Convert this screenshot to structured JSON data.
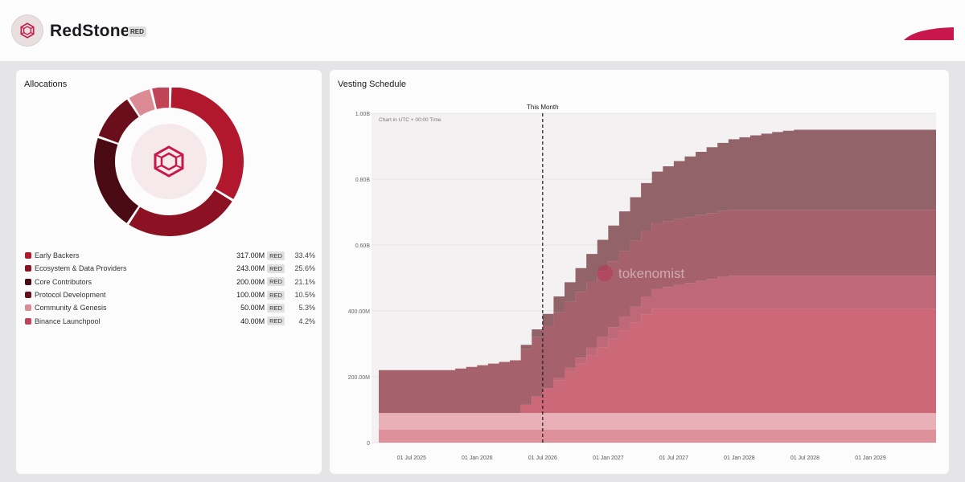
{
  "header": {
    "token_name": "RedStone",
    "token_symbol": "RED",
    "logo_icon": "redstone-hexagon-icon",
    "brand_color": "#c8174a"
  },
  "allocations": {
    "title": "Allocations",
    "items": [
      {
        "label": "Early Backers",
        "amount": "317.00M",
        "symbol": "RED",
        "pct": "33.4%",
        "value": 33.4,
        "color": "#b1182d"
      },
      {
        "label": "Ecosystem & Data Providers",
        "amount": "243.00M",
        "symbol": "RED",
        "pct": "25.6%",
        "value": 25.6,
        "color": "#8c1223"
      },
      {
        "label": "Core Contributors",
        "amount": "200.00M",
        "symbol": "RED",
        "pct": "21.1%",
        "value": 21.1,
        "color": "#4a0a14"
      },
      {
        "label": "Protocol Development",
        "amount": "100.00M",
        "symbol": "RED",
        "pct": "10.5%",
        "value": 10.5,
        "color": "#6b0e1c"
      },
      {
        "label": "Community & Genesis",
        "amount": "50.00M",
        "symbol": "RED",
        "pct": "5.3%",
        "value": 5.3,
        "color": "#dc8b95"
      },
      {
        "label": "Binance Launchpool",
        "amount": "40.00M",
        "symbol": "RED",
        "pct": "4.2%",
        "value": 4.2,
        "color": "#c14456"
      }
    ]
  },
  "vesting": {
    "title": "Vesting Schedule",
    "marker_label": "This Month",
    "timezone_note": "Chart in UTC + 00:00 Time",
    "watermark": "tokenomist",
    "chart_data": {
      "type": "area",
      "stacked": true,
      "ylim": [
        0,
        1000000000
      ],
      "y_ticks": [
        "0",
        "200.00M",
        "400.00M",
        "0.60B",
        "0.80B",
        "1.00B"
      ],
      "x_ticks": [
        "01 Jul 2025",
        "01 Jan 2026",
        "01 Jul 2026",
        "01 Jan 2027",
        "01 Jul 2027",
        "01 Jan 2028",
        "01 Jul 2028",
        "01 Jan 2029"
      ],
      "x_range_months": [
        0,
        51
      ],
      "marker_month": 15,
      "series": [
        {
          "color": "#dc8b95",
          "opacity": 0.95,
          "steps": [
            [
              0,
              40
            ],
            [
              51,
              40
            ]
          ]
        },
        {
          "color": "#e6a5ae",
          "opacity": 0.85,
          "steps": [
            [
              0,
              50
            ],
            [
              51,
              50
            ]
          ]
        },
        {
          "color": "#c85a6a",
          "opacity": 0.9,
          "steps": [
            [
              0,
              0
            ],
            [
              12,
              0
            ],
            [
              13,
              25
            ],
            [
              14,
              50
            ],
            [
              15,
              75
            ],
            [
              16,
              100
            ],
            [
              17,
              125
            ],
            [
              18,
              150
            ],
            [
              19,
              175
            ],
            [
              20,
              200
            ],
            [
              21,
              225
            ],
            [
              22,
              250
            ],
            [
              23,
              275
            ],
            [
              24,
              300
            ],
            [
              25,
              317
            ],
            [
              51,
              317
            ]
          ]
        },
        {
          "color": "#b9596a",
          "opacity": 0.9,
          "steps": [
            [
              0,
              0
            ],
            [
              15,
              0
            ],
            [
              16,
              6
            ],
            [
              17,
              12
            ],
            [
              18,
              18
            ],
            [
              19,
              24
            ],
            [
              20,
              30
            ],
            [
              21,
              36
            ],
            [
              22,
              42
            ],
            [
              23,
              48
            ],
            [
              24,
              54
            ],
            [
              25,
              60
            ],
            [
              26,
              66
            ],
            [
              27,
              72
            ],
            [
              28,
              78
            ],
            [
              29,
              84
            ],
            [
              30,
              90
            ],
            [
              31,
              96
            ],
            [
              32,
              100
            ],
            [
              51,
              100
            ]
          ]
        },
        {
          "color": "#9f5661",
          "opacity": 0.92,
          "steps": [
            [
              0,
              130
            ],
            [
              6,
              130
            ],
            [
              7,
              135
            ],
            [
              8,
              140
            ],
            [
              9,
              145
            ],
            [
              10,
              150
            ],
            [
              11,
              155
            ],
            [
              12,
              160
            ],
            [
              13,
              170
            ],
            [
              14,
              180
            ],
            [
              15,
              190
            ],
            [
              16,
              200
            ],
            [
              51,
              200
            ]
          ]
        },
        {
          "color": "#8c5c61",
          "opacity": 0.95,
          "steps": [
            [
              0,
              0
            ],
            [
              12,
              0
            ],
            [
              13,
              12
            ],
            [
              14,
              24
            ],
            [
              15,
              36
            ],
            [
              16,
              48
            ],
            [
              17,
              60
            ],
            [
              18,
              72
            ],
            [
              19,
              84
            ],
            [
              20,
              96
            ],
            [
              21,
              108
            ],
            [
              22,
              120
            ],
            [
              23,
              132
            ],
            [
              24,
              144
            ],
            [
              25,
              156
            ],
            [
              26,
              166
            ],
            [
              27,
              176
            ],
            [
              28,
              184
            ],
            [
              29,
              192
            ],
            [
              30,
              200
            ],
            [
              31,
              207
            ],
            [
              32,
              214
            ],
            [
              33,
              220
            ],
            [
              34,
              226
            ],
            [
              35,
              231
            ],
            [
              36,
              236
            ],
            [
              37,
              240
            ],
            [
              38,
              243
            ],
            [
              51,
              243
            ]
          ]
        }
      ]
    }
  }
}
